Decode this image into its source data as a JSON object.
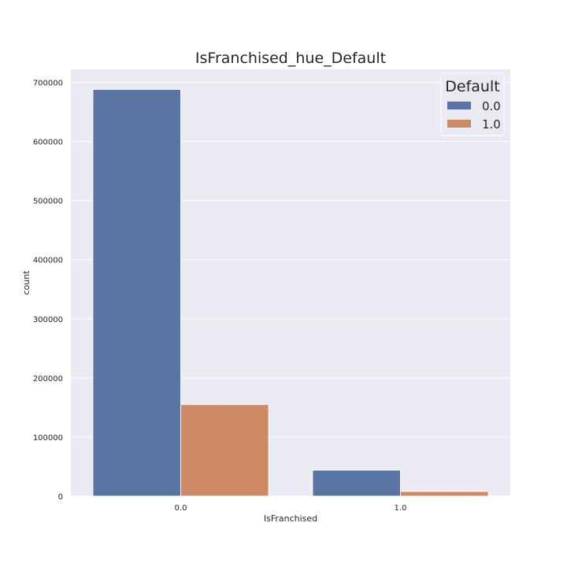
{
  "chart_data": {
    "type": "bar",
    "title": "IsFranchised_hue_Default",
    "xlabel": "IsFranchised",
    "ylabel": "count",
    "categories": [
      "0.0",
      "1.0"
    ],
    "series": [
      {
        "name": "0.0",
        "values": [
          688000,
          44000
        ],
        "color": "#5975a4"
      },
      {
        "name": "1.0",
        "values": [
          155000,
          8000
        ],
        "color": "#cc8963"
      }
    ],
    "ylim": [
      0,
      722000
    ],
    "yticks": [
      0,
      100000,
      200000,
      300000,
      400000,
      500000,
      600000,
      700000
    ],
    "yticklabels": [
      "0",
      "100000",
      "200000",
      "300000",
      "400000",
      "500000",
      "600000",
      "700000"
    ],
    "grid": true,
    "legend": {
      "title": "Default",
      "placement": "top-right"
    },
    "background_color": "#eaeaf2",
    "grid_color": "#ffffff"
  }
}
